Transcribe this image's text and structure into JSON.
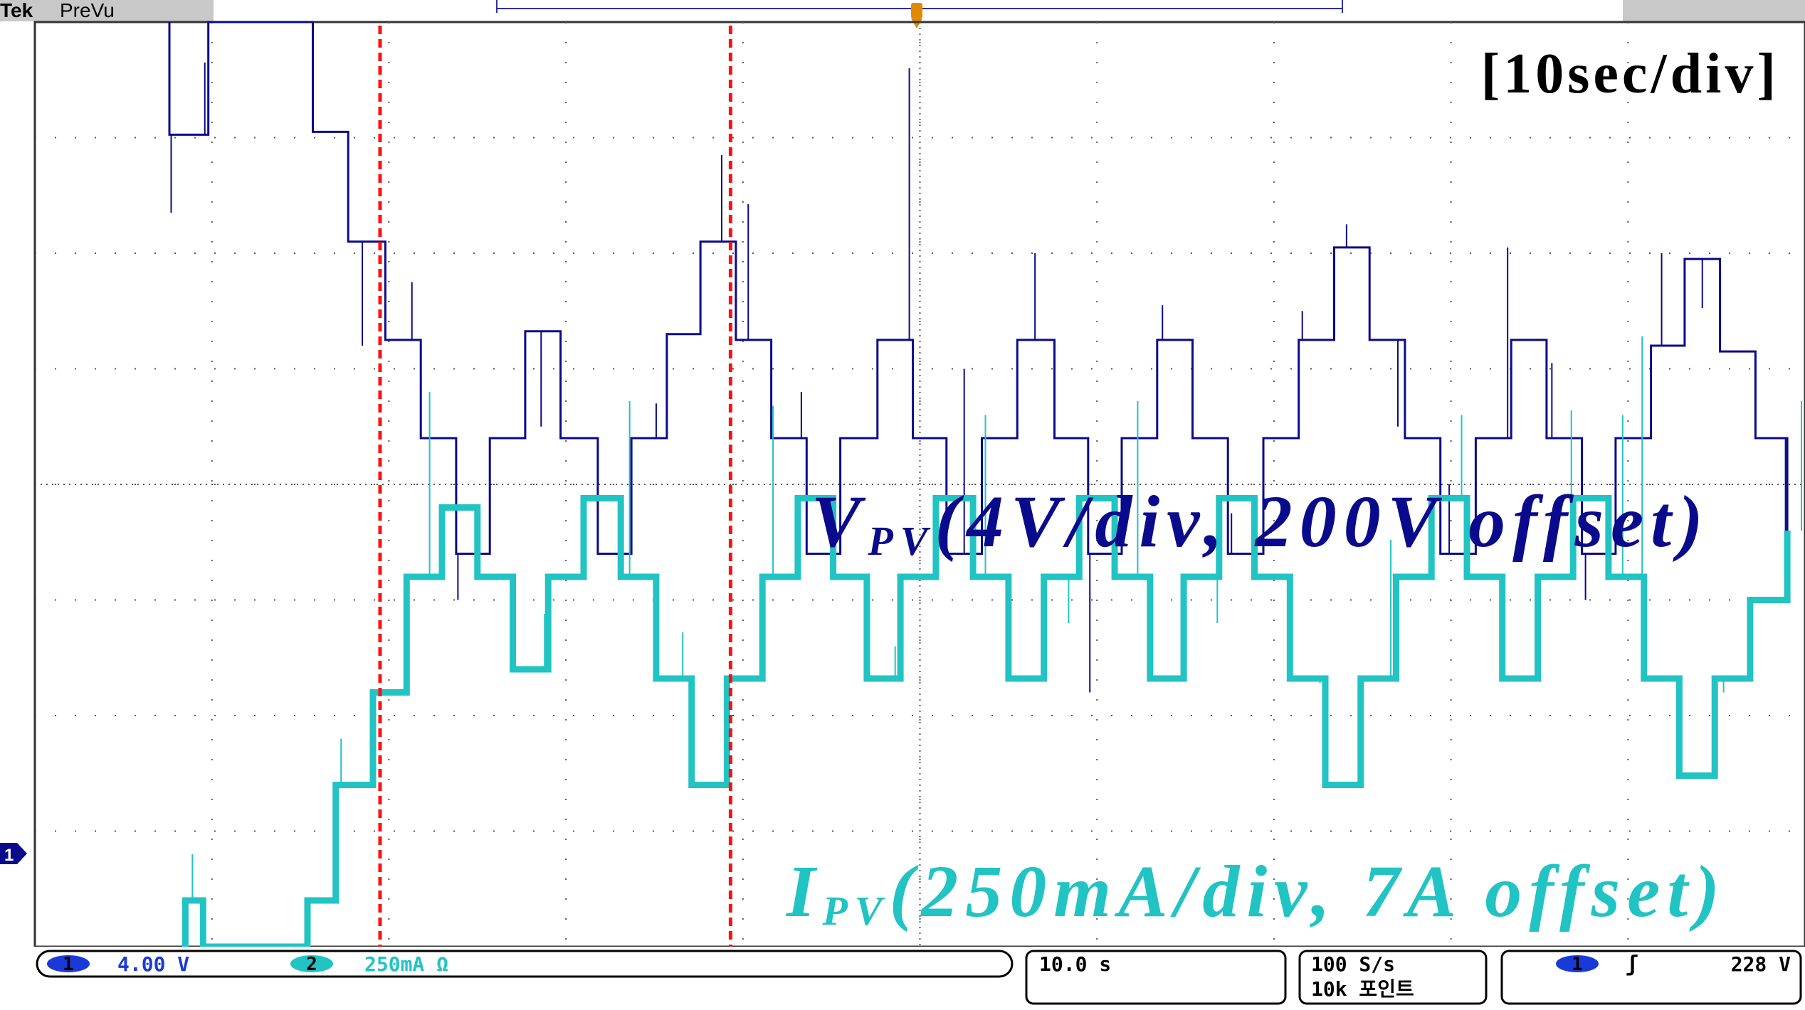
{
  "header": {
    "brand": "Tek",
    "mode": "PreVu"
  },
  "timebase_note": "[10sec/div]",
  "annotations": {
    "vpv_main": "V",
    "vpv_sub": "PV",
    "vpv_rest": "(4V/div, 200V offset)",
    "ipv_main": "I",
    "ipv_sub": "PV",
    "ipv_rest": "(250mA/div, 7A offset)"
  },
  "status_bar": {
    "ch1_number": "1",
    "ch1_scale": "4.00 V",
    "ch2_number": "2",
    "ch2_scale": "250mA Ω",
    "horizontal": "10.0 s",
    "sample_rate": "100 S/s",
    "record_length": "10k 포인트",
    "trigger_channel": "1",
    "trigger_slope": "ʃ",
    "trigger_level": "228 V"
  },
  "ground_marker": "1",
  "colors": {
    "ch1": "#0a0a8c",
    "ch2": "#22c3c3",
    "cursor": "#ff1010",
    "grid": "#555555",
    "trigger": "#e08a00"
  },
  "chart_data": {
    "type": "line",
    "xlim": [
      0,
      100
    ],
    "x_unit": "s",
    "divisions": {
      "horizontal": 10,
      "vertical": 8
    },
    "cursors_x": [
      19.5,
      39.3
    ],
    "series": [
      {
        "name": "VPV",
        "unit": "V",
        "ylim": [
          184,
          216
        ],
        "points": [
          [
            7.6,
            219
          ],
          [
            7.6,
            212.1
          ],
          [
            9.8,
            212.1
          ],
          [
            9.8,
            219
          ],
          [
            15.7,
            219
          ],
          [
            15.7,
            212.2
          ],
          [
            17.7,
            212.2
          ],
          [
            17.7,
            208.4
          ],
          [
            19.8,
            208.4
          ],
          [
            19.8,
            205
          ],
          [
            21.8,
            205
          ],
          [
            21.8,
            201.6
          ],
          [
            23.8,
            201.6
          ],
          [
            23.8,
            197.6
          ],
          [
            25.7,
            197.6
          ],
          [
            25.7,
            201.6
          ],
          [
            27.7,
            201.6
          ],
          [
            27.7,
            205.3
          ],
          [
            29.7,
            205.3
          ],
          [
            29.7,
            201.6
          ],
          [
            31.8,
            201.6
          ],
          [
            31.8,
            197.6
          ],
          [
            33.7,
            197.6
          ],
          [
            33.7,
            201.6
          ],
          [
            35.7,
            201.6
          ],
          [
            35.7,
            205.2
          ],
          [
            37.6,
            205.2
          ],
          [
            37.6,
            208.4
          ],
          [
            39.6,
            208.4
          ],
          [
            39.6,
            205
          ],
          [
            41.6,
            205
          ],
          [
            41.6,
            201.6
          ],
          [
            43.6,
            201.6
          ],
          [
            43.6,
            197.6
          ],
          [
            45.5,
            197.6
          ],
          [
            45.5,
            201.6
          ],
          [
            47.6,
            201.6
          ],
          [
            47.6,
            205
          ],
          [
            49.6,
            205
          ],
          [
            49.6,
            201.6
          ],
          [
            51.5,
            201.6
          ],
          [
            51.5,
            197.6
          ],
          [
            53.5,
            197.6
          ],
          [
            53.5,
            201.6
          ],
          [
            55.5,
            201.6
          ],
          [
            55.5,
            205
          ],
          [
            57.6,
            205
          ],
          [
            57.6,
            201.6
          ],
          [
            59.5,
            201.6
          ],
          [
            59.5,
            197.6
          ],
          [
            61.4,
            197.6
          ],
          [
            61.4,
            201.6
          ],
          [
            63.4,
            201.6
          ],
          [
            63.4,
            205
          ],
          [
            65.4,
            205
          ],
          [
            65.4,
            201.6
          ],
          [
            67.4,
            201.6
          ],
          [
            67.4,
            197.6
          ],
          [
            69.4,
            197.6
          ],
          [
            69.4,
            201.6
          ],
          [
            71.4,
            201.6
          ],
          [
            71.4,
            205
          ],
          [
            73.4,
            205
          ],
          [
            73.4,
            208.2
          ],
          [
            75.4,
            208.2
          ],
          [
            75.4,
            205
          ],
          [
            77.4,
            205
          ],
          [
            77.4,
            201.6
          ],
          [
            79.4,
            201.6
          ],
          [
            79.4,
            197.6
          ],
          [
            81.4,
            197.6
          ],
          [
            81.4,
            201.6
          ],
          [
            83.4,
            201.6
          ],
          [
            83.4,
            205
          ],
          [
            85.4,
            205
          ],
          [
            85.4,
            201.6
          ],
          [
            87.4,
            201.6
          ],
          [
            87.4,
            197.6
          ],
          [
            89.3,
            197.6
          ],
          [
            89.3,
            201.6
          ],
          [
            91.3,
            201.6
          ],
          [
            91.3,
            204.8
          ],
          [
            93.2,
            204.8
          ],
          [
            93.2,
            207.8
          ],
          [
            95.2,
            207.8
          ],
          [
            95.2,
            204.6
          ],
          [
            97.2,
            204.6
          ],
          [
            97.2,
            201.6
          ],
          [
            99,
            201.6
          ],
          [
            99,
            197.6
          ]
        ],
        "spikes": [
          [
            7.7,
            209.4
          ],
          [
            9.6,
            214.6
          ],
          [
            18.5,
            204.8
          ],
          [
            21.3,
            207
          ],
          [
            23.9,
            196
          ],
          [
            28.6,
            202
          ],
          [
            35.1,
            202.8
          ],
          [
            38.8,
            211.4
          ],
          [
            40.3,
            209.7
          ],
          [
            43.3,
            203.2
          ],
          [
            49.4,
            214.4
          ],
          [
            52.5,
            204
          ],
          [
            56.5,
            208
          ],
          [
            59.6,
            192.8
          ],
          [
            63.7,
            206.2
          ],
          [
            67.6,
            199
          ],
          [
            71.6,
            206
          ],
          [
            74.1,
            209
          ],
          [
            77,
            202
          ],
          [
            79.9,
            200
          ],
          [
            83.2,
            208.2
          ],
          [
            85.7,
            204.2
          ],
          [
            87.6,
            196
          ],
          [
            91.9,
            208
          ],
          [
            94.2,
            206.1
          ],
          [
            98.9,
            196.3
          ]
        ]
      },
      {
        "name": "IPV",
        "unit": "A",
        "ylim": [
          5.75,
          7.75
        ],
        "points": [
          [
            8.5,
            5.4
          ],
          [
            8.5,
            5.85
          ],
          [
            9.5,
            5.85
          ],
          [
            9.5,
            5.4
          ],
          [
            15.4,
            5.4
          ],
          [
            15.4,
            5.85
          ],
          [
            17,
            5.85
          ],
          [
            17,
            6.1
          ],
          [
            19.1,
            6.1
          ],
          [
            19.1,
            6.3
          ],
          [
            21,
            6.3
          ],
          [
            21,
            6.55
          ],
          [
            23,
            6.55
          ],
          [
            23,
            6.7
          ],
          [
            25,
            6.7
          ],
          [
            25,
            6.55
          ],
          [
            27,
            6.55
          ],
          [
            27,
            6.35
          ],
          [
            29,
            6.35
          ],
          [
            29,
            6.55
          ],
          [
            31,
            6.55
          ],
          [
            31,
            6.72
          ],
          [
            33.1,
            6.72
          ],
          [
            33.1,
            6.55
          ],
          [
            35.1,
            6.55
          ],
          [
            35.1,
            6.33
          ],
          [
            37.1,
            6.33
          ],
          [
            37.1,
            6.1
          ],
          [
            39.1,
            6.1
          ],
          [
            39.1,
            6.33
          ],
          [
            41.1,
            6.33
          ],
          [
            41.1,
            6.55
          ],
          [
            43.1,
            6.55
          ],
          [
            43.1,
            6.72
          ],
          [
            45.1,
            6.72
          ],
          [
            45.1,
            6.55
          ],
          [
            47,
            6.55
          ],
          [
            47,
            6.33
          ],
          [
            48.9,
            6.33
          ],
          [
            48.9,
            6.55
          ],
          [
            50.9,
            6.55
          ],
          [
            50.9,
            6.72
          ],
          [
            53,
            6.72
          ],
          [
            53,
            6.55
          ],
          [
            55,
            6.55
          ],
          [
            55,
            6.33
          ],
          [
            57,
            6.33
          ],
          [
            57,
            6.55
          ],
          [
            59,
            6.55
          ],
          [
            59,
            6.72
          ],
          [
            61,
            6.72
          ],
          [
            61,
            6.55
          ],
          [
            63,
            6.55
          ],
          [
            63,
            6.33
          ],
          [
            64.9,
            6.33
          ],
          [
            64.9,
            6.55
          ],
          [
            66.9,
            6.55
          ],
          [
            66.9,
            6.72
          ],
          [
            68.9,
            6.72
          ],
          [
            68.9,
            6.55
          ],
          [
            70.9,
            6.55
          ],
          [
            70.9,
            6.33
          ],
          [
            72.9,
            6.33
          ],
          [
            72.9,
            6.1
          ],
          [
            74.9,
            6.1
          ],
          [
            74.9,
            6.33
          ],
          [
            76.9,
            6.33
          ],
          [
            76.9,
            6.55
          ],
          [
            78.9,
            6.55
          ],
          [
            78.9,
            6.72
          ],
          [
            80.9,
            6.72
          ],
          [
            80.9,
            6.55
          ],
          [
            82.9,
            6.55
          ],
          [
            82.9,
            6.33
          ],
          [
            84.9,
            6.33
          ],
          [
            84.9,
            6.55
          ],
          [
            86.9,
            6.55
          ],
          [
            86.9,
            6.72
          ],
          [
            88.9,
            6.72
          ],
          [
            88.9,
            6.55
          ],
          [
            90.9,
            6.55
          ],
          [
            90.9,
            6.33
          ],
          [
            92.9,
            6.33
          ],
          [
            92.9,
            6.12
          ],
          [
            94.9,
            6.12
          ],
          [
            94.9,
            6.33
          ],
          [
            96.9,
            6.33
          ],
          [
            96.9,
            6.5
          ],
          [
            99,
            6.5
          ],
          [
            99,
            6.65
          ]
        ],
        "spikes": [
          [
            8.9,
            5.95
          ],
          [
            17.3,
            6.2
          ],
          [
            22.3,
            6.95
          ],
          [
            28.8,
            6.47
          ],
          [
            33.6,
            6.93
          ],
          [
            36.6,
            6.43
          ],
          [
            41.7,
            6.92
          ],
          [
            48.6,
            6.4
          ],
          [
            53.7,
            6.9
          ],
          [
            58.4,
            6.45
          ],
          [
            62.3,
            6.93
          ],
          [
            66.8,
            6.45
          ],
          [
            72.6,
            6.32
          ],
          [
            76.6,
            6.63
          ],
          [
            80.6,
            6.9
          ],
          [
            86.8,
            6.91
          ],
          [
            89.7,
            6.9
          ],
          [
            90.8,
            7.07
          ],
          [
            95.4,
            6.3
          ],
          [
            99.8,
            6.93
          ]
        ]
      }
    ]
  }
}
